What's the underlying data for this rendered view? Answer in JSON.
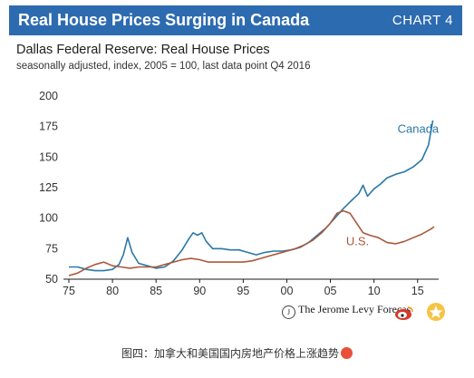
{
  "header": {
    "title": "Real House Prices Surging in Canada",
    "tag": "CHART 4"
  },
  "chart_meta": {
    "subtitle": "Dallas Federal Reserve: Real House Prices",
    "note": "seasonally  adjusted, index, 2005 = 100, last data point Q4 2016"
  },
  "credit": "The Jerome Levy Forecas",
  "caption": "图四：加拿大和美国国内房地产价格上涨趋势",
  "colors": {
    "banner": "#2d6bb0",
    "canada": "#2a78a8",
    "us": "#a9593a"
  },
  "chart_data": {
    "type": "line",
    "title": "Dallas Federal Reserve: Real House Prices",
    "xlabel": "",
    "ylabel": "",
    "xlim": [
      1975,
      2017
    ],
    "ylim": [
      50,
      200
    ],
    "x_ticks": [
      1975,
      1980,
      1985,
      1990,
      1995,
      2000,
      2005,
      2010,
      2015
    ],
    "x_tick_labels": [
      "75",
      "80",
      "85",
      "90",
      "95",
      "00",
      "05",
      "10",
      "15"
    ],
    "y_ticks": [
      50,
      75,
      100,
      125,
      150,
      175,
      200
    ],
    "y_tick_labels": [
      "50",
      "75",
      "100",
      "125",
      "150",
      "175",
      "200"
    ],
    "grid": false,
    "legend": "inline labels",
    "series": [
      {
        "name": "Canada",
        "x": [
          1975,
          1976,
          1977,
          1978,
          1979,
          1980,
          1980.75,
          1981.25,
          1981.75,
          1982.25,
          1983,
          1984,
          1985,
          1986,
          1987,
          1988,
          1988.75,
          1989.25,
          1989.75,
          1990.25,
          1990.75,
          1991.5,
          1992.5,
          1993.5,
          1994.5,
          1995.5,
          1996.5,
          1997.5,
          1998.5,
          1999.5,
          2000.5,
          2001.5,
          2002.5,
          2003.5,
          2004.5,
          2005.5,
          2006.5,
          2007.5,
          2008.25,
          2008.75,
          2009.25,
          2010,
          2010.75,
          2011.5,
          2012.5,
          2013.5,
          2014.5,
          2015.5,
          2016.25,
          2016.75
        ],
        "values": [
          60,
          60,
          58,
          57,
          57,
          58,
          62,
          70,
          84,
          72,
          63,
          61,
          59,
          60,
          65,
          74,
          83,
          88,
          86,
          88,
          81,
          75,
          75,
          74,
          74,
          72,
          70,
          72,
          73,
          73,
          74,
          76,
          80,
          86,
          92,
          100,
          108,
          115,
          120,
          127,
          118,
          124,
          128,
          133,
          136,
          138,
          142,
          148,
          160,
          180
        ]
      },
      {
        "name": "U.S.",
        "x": [
          1975,
          1976,
          1977,
          1978,
          1979,
          1980,
          1981,
          1982,
          1983,
          1984,
          1985,
          1986,
          1987,
          1988,
          1989,
          1990,
          1991,
          1992,
          1993,
          1994,
          1995,
          1996,
          1997,
          1998,
          1999,
          2000,
          2001,
          2002,
          2003,
          2004,
          2005,
          2005.75,
          2006.5,
          2007.25,
          2008,
          2008.75,
          2009.5,
          2010.5,
          2011.5,
          2012.5,
          2013.5,
          2014.5,
          2015.5,
          2016.5,
          2016.9
        ],
        "values": [
          53,
          55,
          59,
          62,
          64,
          61,
          60,
          59,
          60,
          60,
          60,
          62,
          64,
          66,
          67,
          66,
          64,
          64,
          64,
          64,
          64,
          65,
          67,
          69,
          71,
          73,
          75,
          78,
          82,
          88,
          96,
          104,
          106,
          104,
          96,
          88,
          86,
          84,
          80,
          79,
          81,
          84,
          87,
          91,
          93
        ]
      }
    ],
    "annotations": [
      {
        "text": "Canada",
        "series": "Canada"
      },
      {
        "text": "U.S.",
        "series": "U.S."
      }
    ]
  }
}
